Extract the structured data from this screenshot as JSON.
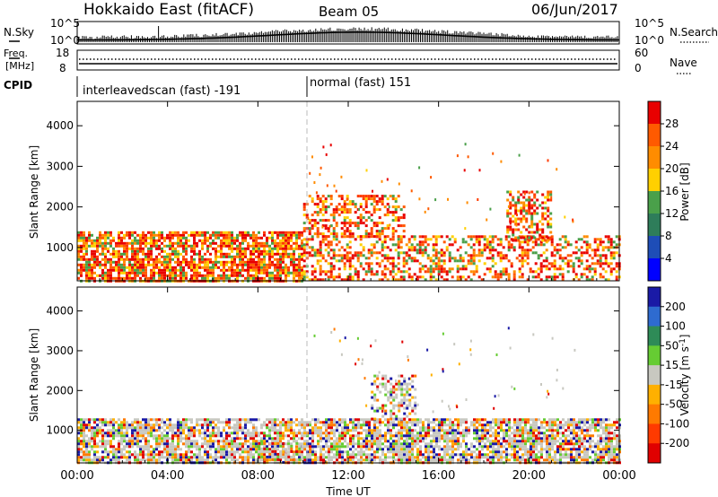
{
  "header": {
    "title": "Hokkaido East (fitACF)",
    "beam": "Beam 05",
    "date": "06/Jun/2017"
  },
  "noise_panel": {
    "left_label": "N.Sky",
    "right_label": "N.Search",
    "left_ticks": [
      "10^5",
      "10^0"
    ],
    "right_ticks": [
      "10^5",
      "10^0"
    ]
  },
  "freq_panel": {
    "left_label_1": "Freq.",
    "left_label_2": "[MHz]",
    "left_ticks": [
      "18",
      "8"
    ],
    "right_label": "Nave",
    "right_ticks": [
      "60",
      "0"
    ]
  },
  "cpid_panel": {
    "label": "CPID",
    "modes": [
      "interleavedscan (fast) -191",
      "normal (fast) 151"
    ]
  },
  "chart_data": [
    {
      "type": "heatmap",
      "title": "",
      "xlabel": "Time UT",
      "ylabel": "Slant Range [km]",
      "xlim": [
        "00:00",
        "00:00"
      ],
      "ylim": [
        180,
        4600
      ],
      "x_ticks": [
        "00:00",
        "04:00",
        "08:00",
        "12:00",
        "16:00",
        "20:00",
        "00:00"
      ],
      "y_ticks": [
        "1000",
        "2000",
        "3000",
        "4000"
      ],
      "colorbar": {
        "label": "Power [dB]",
        "ticks": [
          "28",
          "24",
          "20",
          "16",
          "12",
          "8",
          "4"
        ],
        "colors": [
          "#e80000",
          "#ff5a00",
          "#ff8c00",
          "#ffd000",
          "#4aa04a",
          "#2e7d5a",
          "#1e4db7",
          "#0000ff"
        ]
      },
      "mode_change_time": "10:00",
      "echo_regions": [
        {
          "t_start": "00:00",
          "t_end": "10:00",
          "range_min": 200,
          "range_max": 1400,
          "level_db": 28
        },
        {
          "t_start": "10:00",
          "t_end": "24:00",
          "range_min": 200,
          "range_max": 1300,
          "level_db": 24
        },
        {
          "t_start": "10:00",
          "t_end": "14:30",
          "range_min": 1300,
          "range_max": 2300,
          "level_db": 20
        },
        {
          "t_start": "19:00",
          "t_end": "21:00",
          "range_min": 1200,
          "range_max": 2400,
          "level_db": 24
        }
      ]
    },
    {
      "type": "heatmap",
      "title": "",
      "xlabel": "Time UT",
      "ylabel": "Slant Range [km]",
      "xlim": [
        "00:00",
        "00:00"
      ],
      "ylim": [
        180,
        4600
      ],
      "x_ticks": [
        "00:00",
        "04:00",
        "08:00",
        "12:00",
        "16:00",
        "20:00",
        "00:00"
      ],
      "y_ticks": [
        "1000",
        "2000",
        "3000",
        "4000"
      ],
      "colorbar": {
        "label": "Velocity [m s-1]",
        "label_main": "Velocity [m s",
        "label_sup": "-1",
        "label_end": "]",
        "ticks": [
          "200",
          "100",
          "50",
          "15",
          "-15",
          "-50",
          "-100",
          "-200"
        ],
        "colors": [
          "#1a1aa6",
          "#2e6bd0",
          "#2e8b57",
          "#66cc33",
          "#c8c8c0",
          "#ffb000",
          "#ff7a00",
          "#ff3a00",
          "#e00000"
        ]
      },
      "mode_change_time": "10:00",
      "echo_regions": [
        {
          "t_start": "00:00",
          "t_end": "24:00",
          "range_min": 200,
          "range_max": 1300,
          "velocity": 0
        },
        {
          "t_start": "08:00",
          "t_end": "10:00",
          "range_min": 200,
          "range_max": 700,
          "velocity": 20
        },
        {
          "t_start": "13:00",
          "t_end": "15:00",
          "range_min": 1300,
          "range_max": 2400,
          "velocity": 0
        }
      ]
    }
  ]
}
